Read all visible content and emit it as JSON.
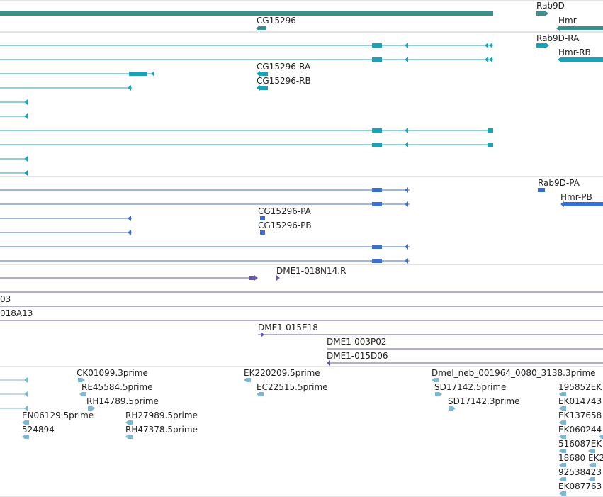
{
  "colors": {
    "gene": "#3a8f8c",
    "transcript": "#1aa3b8",
    "mrna": "#3b6fcf",
    "clone": "#6a5aa8",
    "est": "#7db6d6",
    "divider": "#c8c8c8"
  },
  "tracks": {
    "gene": {
      "features": [
        "Rab9D",
        "CG15296",
        "Hmr"
      ]
    },
    "transcript": {
      "features": [
        "Rab9D-RA",
        "Hmr-RB",
        "CG15296-RA",
        "CG15296-RB"
      ]
    },
    "mrna": {
      "features": [
        "Rab9D-PA",
        "Hmr-PB",
        "CG15296-PA",
        "CG15296-PB"
      ]
    },
    "clone": {
      "features": [
        "DME1-018N14.R",
        "03",
        "018A13",
        "DME1-015E18",
        "DME1-003P02",
        "DME1-015D06"
      ]
    },
    "est": {
      "features": [
        "CK01099.3prime",
        "RE45584.5prime",
        "RH14789.5prime",
        "EN06129.5prime",
        "524894",
        "RH27989.5prime",
        "RH47378.5prime",
        "EK220209.5prime",
        "EC22515.5prime",
        "Dmel_neb_001964_0080_3138.3prime",
        "SD17142.5prime",
        "SD17142.3prime",
        "195852EK",
        "EK014743",
        "EK137658",
        "EK060244",
        "516087EK",
        "18680",
        "EK2",
        "92538423",
        "EK087763"
      ]
    }
  }
}
